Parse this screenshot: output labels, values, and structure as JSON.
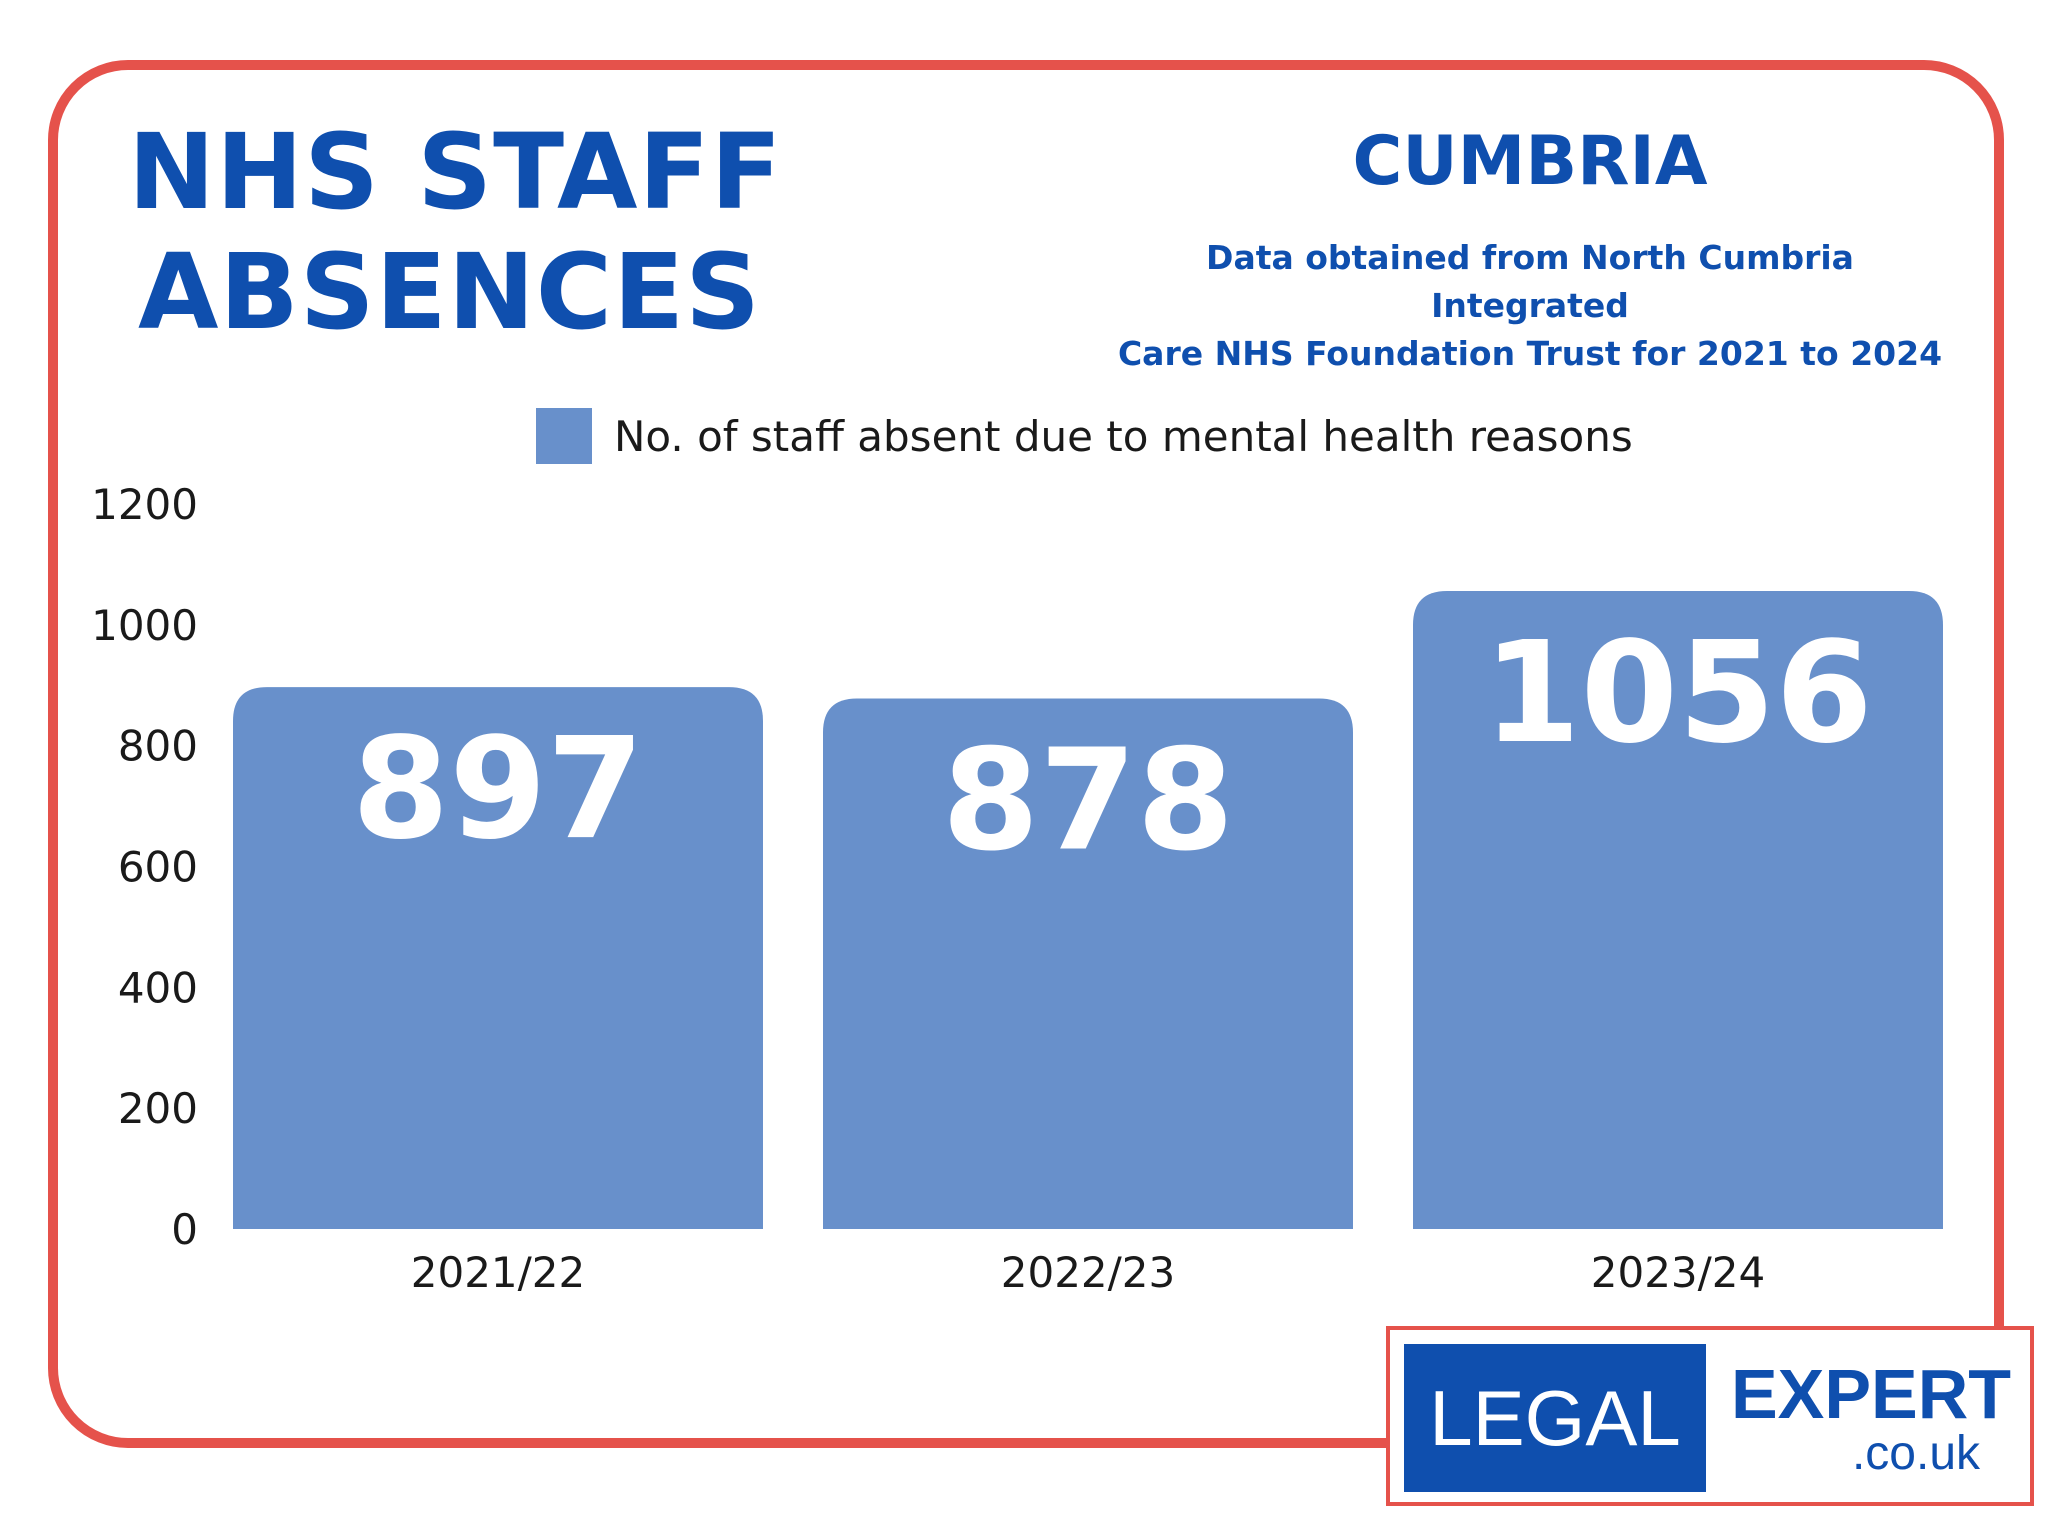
{
  "header": {
    "title_line1": "NHS STAFF",
    "title_line2": "ABSENCES",
    "region": "CUMBRIA",
    "source_line1": "Data obtained from North Cumbria Integrated",
    "source_line2": "Care NHS Foundation Trust for 2021 to 2024"
  },
  "legend": {
    "label": "No. of staff absent due to mental health reasons"
  },
  "logo": {
    "left_text": "LEGAL",
    "right_text": "EXPERT",
    "domain_text": ".co.uk"
  },
  "colors": {
    "accent": "#0f4fae",
    "frame": "#e5524b",
    "bar": "#6890cb"
  },
  "chart_data": {
    "type": "bar",
    "title": "",
    "xlabel": "",
    "ylabel": "",
    "categories": [
      "2021/22",
      "2022/23",
      "2023/24"
    ],
    "series": [
      {
        "name": "No. of staff absent due to mental health reasons",
        "values": [
          897,
          878,
          1056
        ]
      }
    ],
    "data_labels": [
      "897",
      "878",
      "1056"
    ],
    "yticks": [
      0,
      200,
      400,
      600,
      800,
      1000,
      1200
    ],
    "ylim": [
      0,
      1200
    ],
    "grid": false,
    "legend_position": "top-center"
  }
}
